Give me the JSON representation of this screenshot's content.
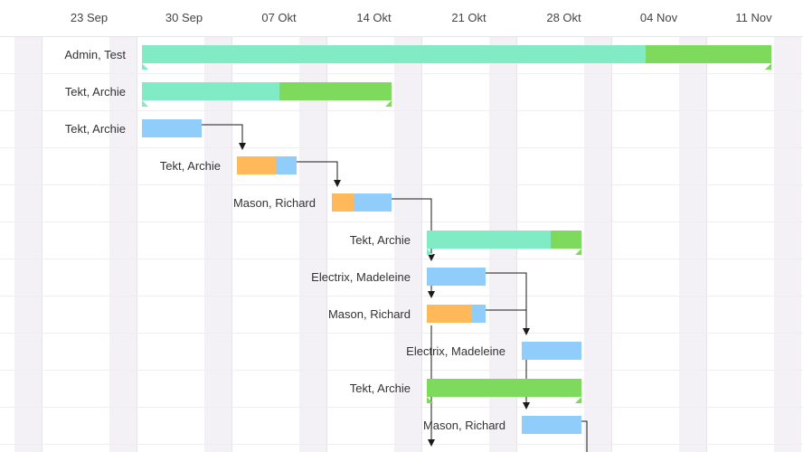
{
  "timeline": {
    "weeks": [
      "23 Sep",
      "30 Sep",
      "07 Okt",
      "14 Okt",
      "21 Okt",
      "28 Okt",
      "04 Nov",
      "11 Nov"
    ]
  },
  "colors": {
    "summary_light": "#80ebc4",
    "summary_dark": "#7dda5c",
    "task_blue": "#91cdfb",
    "task_orange": "#ffb95a",
    "link": "#1a1a1a"
  },
  "tasks": [
    {
      "assignee": "Admin, Test",
      "type": "summary",
      "progress": 0.8
    },
    {
      "assignee": "Tekt, Archie",
      "type": "summary",
      "progress": 0.55
    },
    {
      "assignee": "Tekt, Archie",
      "type": "task",
      "progress": 0
    },
    {
      "assignee": "Tekt, Archie",
      "type": "task",
      "progress": 0.65
    },
    {
      "assignee": "Mason, Richard",
      "type": "task",
      "progress": 0.36
    },
    {
      "assignee": "Tekt, Archie",
      "type": "summary",
      "progress": 0.8
    },
    {
      "assignee": "Electrix, Madeleine",
      "type": "task",
      "progress": 0
    },
    {
      "assignee": "Mason, Richard",
      "type": "task",
      "progress": 0.77
    },
    {
      "assignee": "Electrix, Madeleine",
      "type": "task",
      "progress": 0
    },
    {
      "assignee": "Tekt, Archie",
      "type": "summary",
      "progress": 0
    },
    {
      "assignee": "Mason, Richard",
      "type": "task",
      "progress": 0
    },
    {
      "assignee": "",
      "type": "task",
      "progress": 0
    }
  ]
}
